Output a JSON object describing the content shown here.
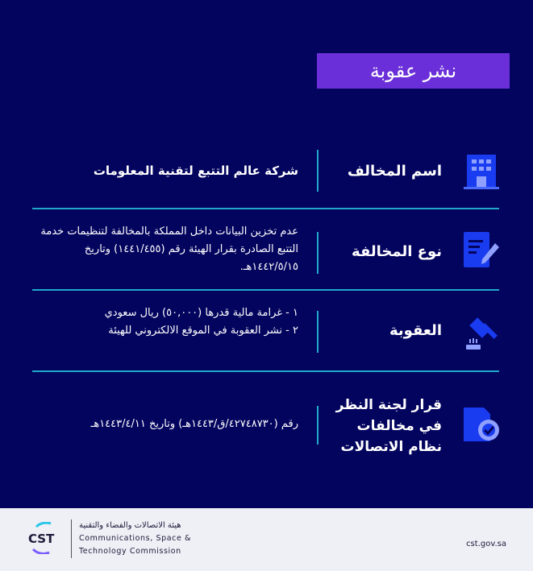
{
  "title": "نشر عقوبة",
  "rows": [
    {
      "label": "اسم المخالف",
      "icon": "building-icon",
      "text": "شركة عالم التتبع لتقنية المعلومات"
    },
    {
      "label": "نوع المخالفة",
      "icon": "document-pen-icon",
      "text": "عدم تخزين البيانات داخل المملكة بالمخالفة لتنظيمات خدمة التتبع الصادرة بقرار الهيئة رقم (١٤٤١/٤٥٥) وتاريخ ١٤٤٢/٥/١٥هـ."
    },
    {
      "label": "العقوبة",
      "icon": "gavel-icon",
      "lines": [
        "١ - غرامة مالية قدرها (٥٠,٠٠٠) ريال سعودي",
        "٢ - نشر العقوبة في الموقع الالكتروني للهيئة"
      ]
    },
    {
      "label": "قرار لجنة النظر في مخالفات نظام الاتصالات",
      "icon": "verified-document-icon",
      "text": "رقم (٤٢٧٤٨٧٣٠/ق/١٤٤٣هـ) وتاريخ ١٤٤٣/٤/١١هـ"
    }
  ],
  "footer": {
    "logo_text": "CST",
    "org_ar": "هيئة الاتصالات والفضاء والتقنية",
    "org_en_1": "Communications, Space &",
    "org_en_2": "Technology Commission",
    "url": "cst.gov.sa"
  },
  "colors": {
    "background": "#03045e",
    "title_bg": "#6b2fd9",
    "divider": "#1fa8c9",
    "icon_blue": "#1a3cf0"
  }
}
